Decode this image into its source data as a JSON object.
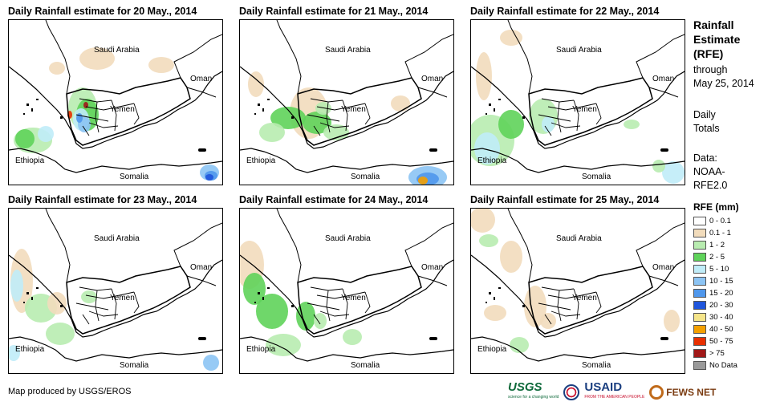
{
  "panels": [
    {
      "title": "Daily Rainfall estimate for 20 May., 2014"
    },
    {
      "title": "Daily Rainfall estimate for 21 May., 2014"
    },
    {
      "title": "Daily Rainfall estimate for 22 May., 2014"
    },
    {
      "title": "Daily Rainfall estimate for 23 May., 2014"
    },
    {
      "title": "Daily Rainfall estimate for 24 May., 2014"
    },
    {
      "title": "Daily Rainfall estimate for 25 May., 2014"
    }
  ],
  "map_labels": {
    "saudi_arabia": "Saudi Arabia",
    "oman": "Oman",
    "yemen": "Yemen",
    "ethiopia": "Ethiopia",
    "somalia": "Somalia"
  },
  "sidebar": {
    "title_line1": "Rainfall",
    "title_line2": "Estimate",
    "title_line3": "(RFE)",
    "through": "through",
    "date": "May 25, 2014",
    "daily": "Daily",
    "totals": "Totals",
    "data_label": "Data:",
    "data_src1": "NOAA-",
    "data_src2": "RFE2.0"
  },
  "legend": {
    "title": "RFE (mm)",
    "items": [
      {
        "label": "0 - 0.1",
        "color": "#ffffff"
      },
      {
        "label": "0.1 - 1",
        "color": "#f2dcbc"
      },
      {
        "label": "1 - 2",
        "color": "#b8ecb0"
      },
      {
        "label": "2 - 5",
        "color": "#5fd35a"
      },
      {
        "label": "5 - 10",
        "color": "#c0ecf8"
      },
      {
        "label": "10 - 15",
        "color": "#8cc4f4"
      },
      {
        "label": "15 - 20",
        "color": "#4f97ec"
      },
      {
        "label": "20 - 30",
        "color": "#1f55dc"
      },
      {
        "label": "30 - 40",
        "color": "#f5e58a"
      },
      {
        "label": "40 - 50",
        "color": "#f4a000"
      },
      {
        "label": "50 - 75",
        "color": "#e83000"
      },
      {
        "label": "> 75",
        "color": "#a01818"
      },
      {
        "label": "No Data",
        "color": "#9a9a9a"
      }
    ]
  },
  "footer": {
    "credit": "Map produced by USGS/EROS"
  },
  "logos": {
    "usgs": "USGS",
    "usaid": "USAID",
    "fews": "FEWS NET"
  }
}
